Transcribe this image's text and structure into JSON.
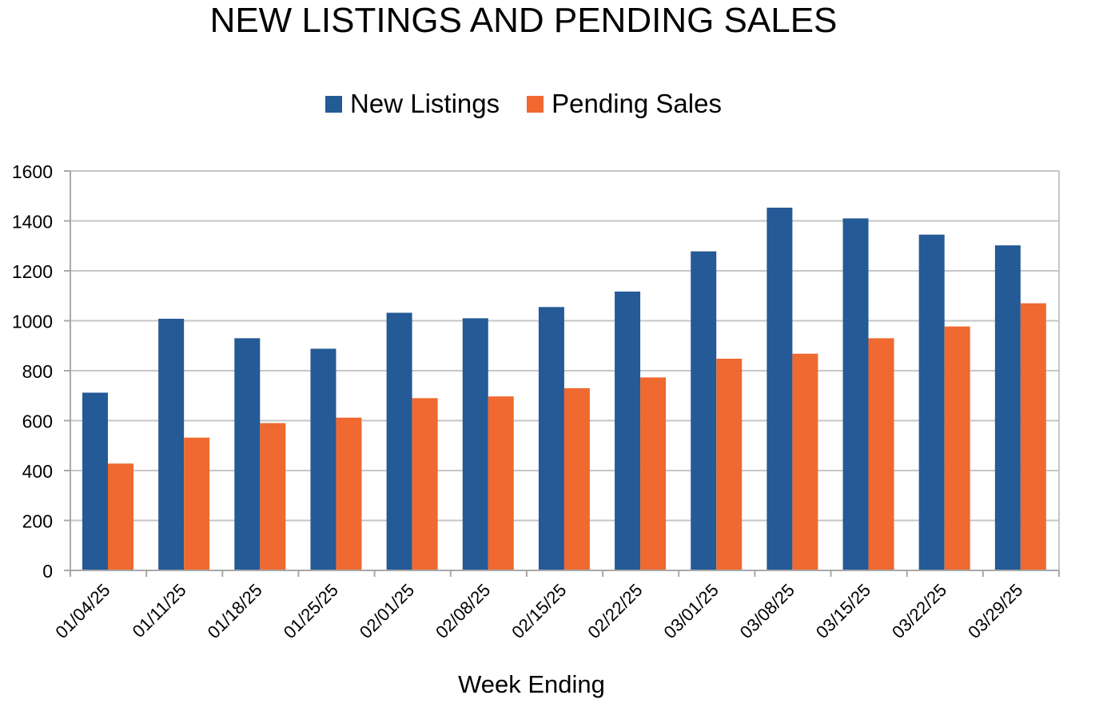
{
  "chart_data": {
    "type": "bar",
    "title": "NEW LISTINGS AND PENDING SALES",
    "xlabel": "Week Ending",
    "ylabel": "",
    "ylim": [
      0,
      1600
    ],
    "yticks": [
      0,
      200,
      400,
      600,
      800,
      1000,
      1200,
      1400,
      1600
    ],
    "grid": true,
    "legend_position": "top-center",
    "categories": [
      "01/04/25",
      "01/11/25",
      "01/18/25",
      "01/25/25",
      "02/01/25",
      "02/08/25",
      "02/15/25",
      "02/22/25",
      "03/01/25",
      "03/08/25",
      "03/15/25",
      "03/22/25",
      "03/29/25"
    ],
    "series": [
      {
        "name": "New Listings",
        "color": "#245a96",
        "values": [
          712,
          1008,
          930,
          888,
          1032,
          1010,
          1055,
          1117,
          1278,
          1453,
          1410,
          1345,
          1302
        ]
      },
      {
        "name": "Pending Sales",
        "color": "#ef6930",
        "values": [
          428,
          532,
          590,
          612,
          690,
          697,
          730,
          773,
          848,
          868,
          930,
          977,
          1070
        ]
      }
    ]
  }
}
